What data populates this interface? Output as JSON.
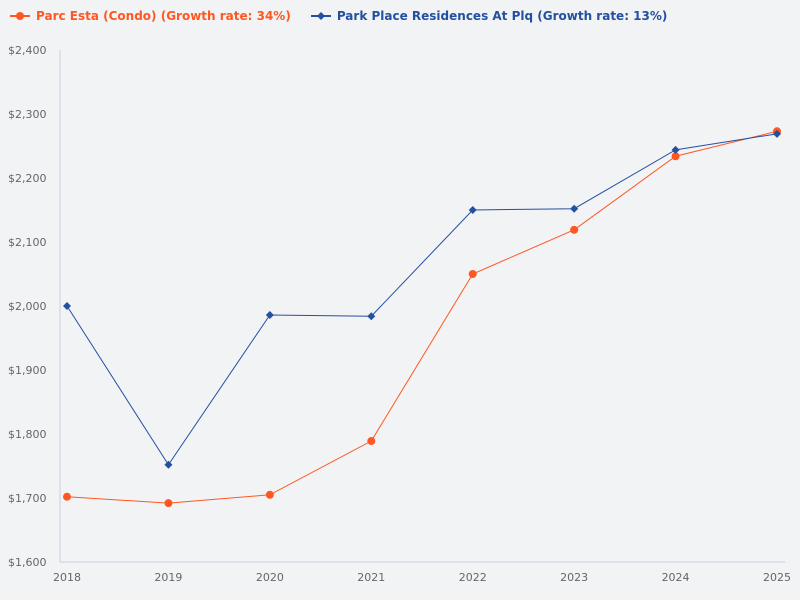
{
  "chart_data": {
    "type": "line",
    "title": "",
    "xlabel": "",
    "ylabel": "",
    "categories": [
      "2018",
      "2019",
      "2020",
      "2021",
      "2022",
      "2023",
      "2024",
      "2025"
    ],
    "ylim": [
      1600,
      2400
    ],
    "yticks": [
      1600,
      1700,
      1800,
      1900,
      2000,
      2100,
      2200,
      2300,
      2400
    ],
    "ytick_labels": [
      "$1,600",
      "$1,700",
      "$1,800",
      "$1,900",
      "$2,000",
      "$2,100",
      "$2,200",
      "$2,300",
      "$2,400"
    ],
    "grid": false,
    "legend_position": "top-left",
    "series": [
      {
        "name": "Parc Esta (Condo) (Growth rate: 34%)",
        "color": "#ff5722",
        "marker": "circle",
        "values": [
          1702,
          1692,
          1705,
          1789,
          2050,
          2119,
          2234,
          2273
        ]
      },
      {
        "name": "Park Place Residences At Plq (Growth rate: 13%)",
        "color": "#2350a0",
        "marker": "diamond",
        "values": [
          2000,
          1752,
          1986,
          1984,
          2150,
          2152,
          2244,
          2269
        ]
      }
    ]
  }
}
